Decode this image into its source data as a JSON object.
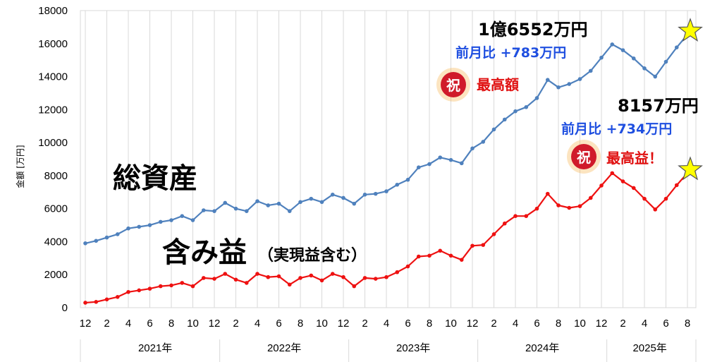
{
  "chart_data": {
    "type": "line",
    "ylabel": "金額 [万円]",
    "ylim": [
      0,
      18000
    ],
    "yticks": [
      "0",
      "2000",
      "4000",
      "6000",
      "8000",
      "10000",
      "12000",
      "14000",
      "16000",
      "18000"
    ],
    "x_month_labels": [
      "12",
      "2",
      "4",
      "6",
      "8",
      "10",
      "12",
      "2",
      "4",
      "6",
      "8",
      "10",
      "12",
      "2",
      "4",
      "6",
      "8",
      "10",
      "12",
      "2",
      "4",
      "6",
      "8",
      "10",
      "12",
      "2",
      "4",
      "6",
      "8"
    ],
    "year_labels": [
      "2021年",
      "2022年",
      "2023年",
      "2024年",
      "2025年"
    ],
    "grid": "vertical",
    "series": [
      {
        "name": "総資産",
        "color": "#4f81bd",
        "values": [
          3900,
          4050,
          4250,
          4450,
          4800,
          4900,
          5000,
          5200,
          5300,
          5550,
          5300,
          5900,
          5850,
          6350,
          6000,
          5850,
          6450,
          6200,
          6300,
          5850,
          6400,
          6600,
          6400,
          6850,
          6650,
          6300,
          6850,
          6900,
          7050,
          7450,
          7750,
          8500,
          8700,
          9100,
          8950,
          8750,
          9650,
          10050,
          10800,
          11400,
          11900,
          12150,
          12700,
          13800,
          13350,
          13550,
          13850,
          14350,
          15150,
          15950,
          15600,
          15100,
          14500,
          14000,
          14900,
          15769,
          16552
        ]
      },
      {
        "name": "含み益",
        "color": "#ee1111",
        "values": [
          300,
          350,
          500,
          650,
          950,
          1050,
          1150,
          1300,
          1350,
          1500,
          1300,
          1800,
          1750,
          2050,
          1700,
          1500,
          2050,
          1850,
          1900,
          1400,
          1800,
          1950,
          1650,
          2050,
          1850,
          1300,
          1800,
          1750,
          1850,
          2150,
          2500,
          3100,
          3150,
          3450,
          3150,
          2900,
          3750,
          3800,
          4450,
          5100,
          5550,
          5550,
          6000,
          6900,
          6200,
          6050,
          6150,
          6650,
          7400,
          8150,
          7650,
          7250,
          6600,
          5950,
          6600,
          7423,
          8157
        ]
      }
    ]
  },
  "annotations": {
    "series1_label": "総資産",
    "series2_label": "含み益",
    "series2_sublabel": "（実現益含む）",
    "total_value": "1億6552万円",
    "total_change": "前月比 +783万円",
    "total_badge_glyph": "祝",
    "total_badge_text": "最高額",
    "profit_value": "8157万円",
    "profit_change": "前月比 +734万円",
    "profit_badge_glyph": "祝",
    "profit_badge_text": "最高益！"
  }
}
